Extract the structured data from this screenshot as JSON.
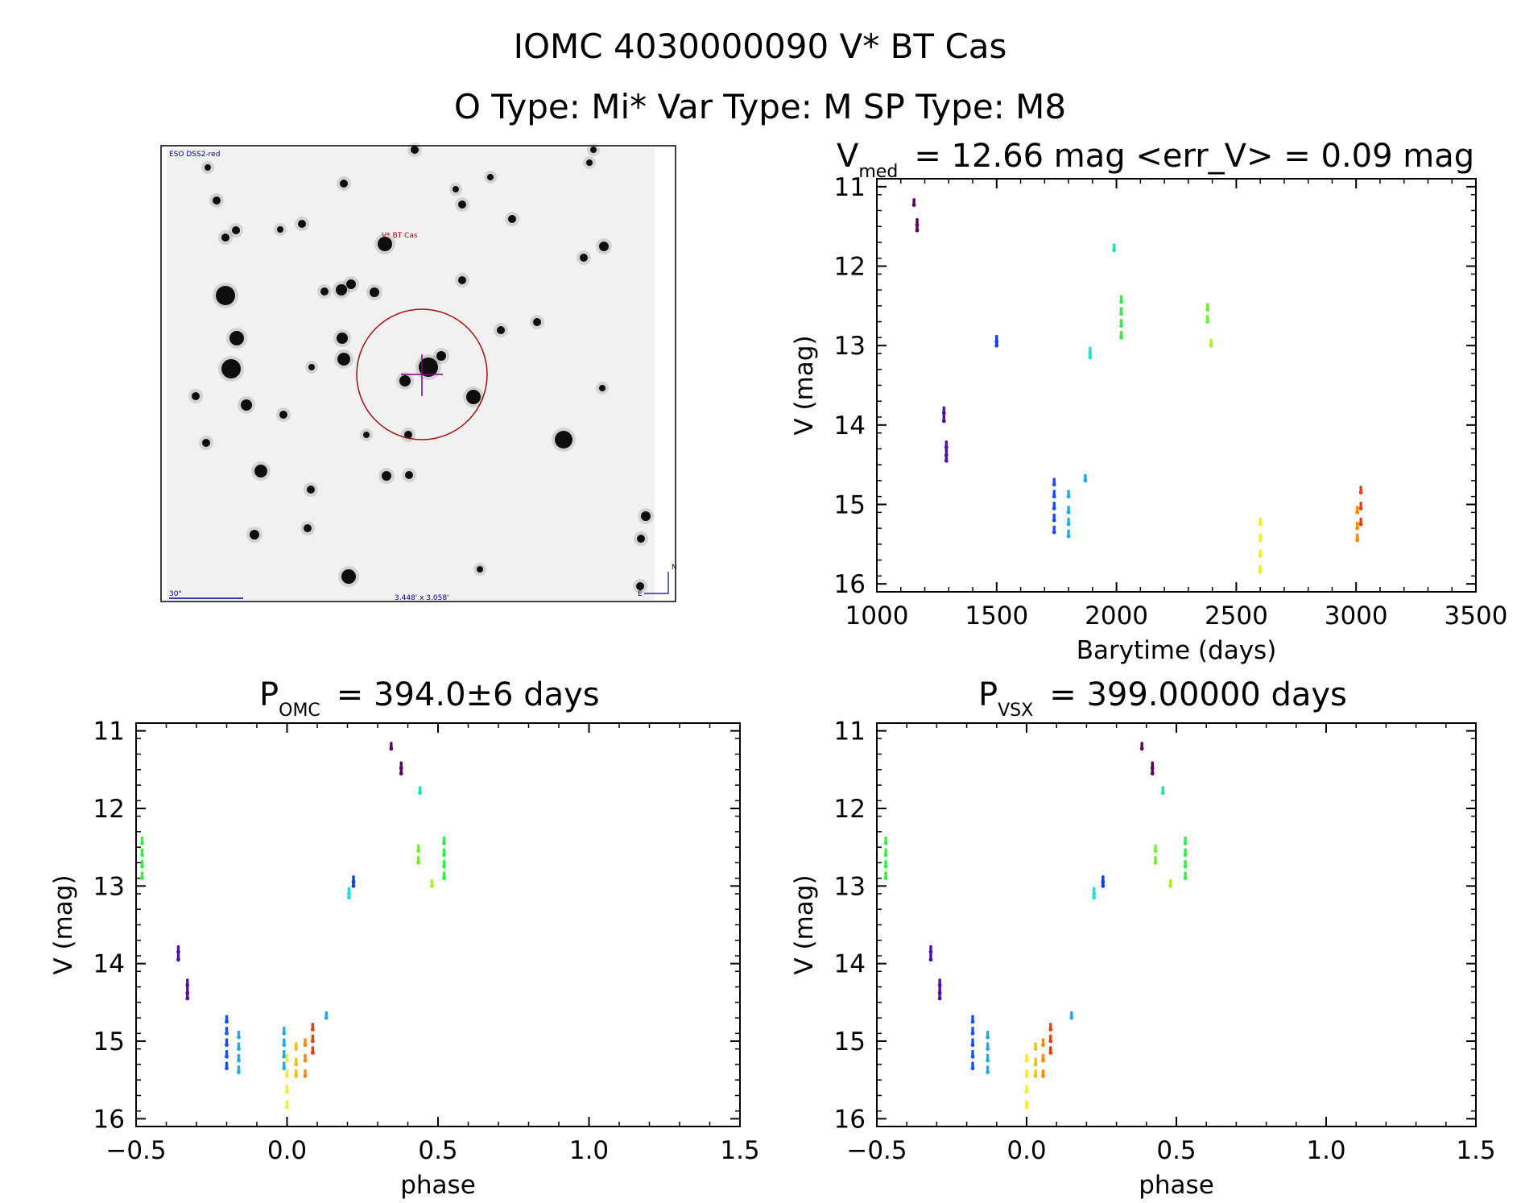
{
  "header": {
    "title": "IOMC 4030000090   V* BT Cas",
    "subtitle": "O Type: Mi*  Var Type: M  SP Type: M8"
  },
  "finder_chart": {
    "survey_label": "ESO DSS2-red",
    "target_label": "V* BT Cas",
    "scale_label": "30\"",
    "fov_label": "3.448' x 3.058'",
    "north_label": "N",
    "east_label": "E"
  },
  "chart_data": [
    {
      "type": "scatter",
      "id": "lightcurve",
      "title_main": "V",
      "title_sub": "med",
      "title_rest": "= 12.66 mag <err_V> = 0.09 mag",
      "xlabel": "Barytime (days)",
      "ylabel": "V (mag)",
      "xlim": [
        1000,
        3500
      ],
      "ylim": [
        16.1,
        10.9
      ],
      "xticks": [
        1000,
        1500,
        2000,
        2500,
        3000,
        3500
      ],
      "xtick_labels": [
        "1000",
        "1500",
        "2000",
        "2500",
        "3000",
        "3500"
      ],
      "yticks": [
        11,
        12,
        13,
        14,
        15,
        16
      ],
      "ytick_labels": [
        "11",
        "12",
        "13",
        "14",
        "15",
        "16"
      ],
      "groups": [
        {
          "t": 1155,
          "v": [
            11.23
          ],
          "color": "#5a005a"
        },
        {
          "t": 1168,
          "v": [
            11.48,
            11.55
          ],
          "color": "#5a005a"
        },
        {
          "t": 1280,
          "v": [
            13.85,
            13.95
          ],
          "color": "#5010a0"
        },
        {
          "t": 1290,
          "v": [
            14.28,
            14.38,
            14.45
          ],
          "color": "#5010a0"
        },
        {
          "t": 1500,
          "v": [
            12.95,
            13.0
          ],
          "color": "#1040e0"
        },
        {
          "t": 1740,
          "v": [
            14.75,
            14.9,
            15.05,
            15.2,
            15.35
          ],
          "color": "#1850f0"
        },
        {
          "t": 1800,
          "v": [
            14.9,
            15.1,
            15.25,
            15.4
          ],
          "color": "#20a8f0"
        },
        {
          "t": 1870,
          "v": [
            14.7
          ],
          "color": "#20a8f0"
        },
        {
          "t": 1890,
          "v": [
            13.1,
            13.15
          ],
          "color": "#20e0d0"
        },
        {
          "t": 1990,
          "v": [
            11.8
          ],
          "color": "#20e0a0"
        },
        {
          "t": 2020,
          "v": [
            12.45,
            12.6,
            12.75,
            12.9
          ],
          "color": "#30f040"
        },
        {
          "t": 2380,
          "v": [
            12.55,
            12.7
          ],
          "color": "#70f030"
        },
        {
          "t": 2395,
          "v": [
            13.0
          ],
          "color": "#a8f020"
        },
        {
          "t": 2600,
          "v": [
            15.25,
            15.45,
            15.65,
            15.85
          ],
          "color": "#f0f020"
        },
        {
          "t": 3005,
          "v": [
            15.1,
            15.3,
            15.45
          ],
          "color": "#f08a10"
        },
        {
          "t": 3020,
          "v": [
            14.85,
            15.05,
            15.25
          ],
          "color": "#f03a10"
        }
      ]
    },
    {
      "type": "scatter",
      "id": "phase-omc",
      "title_main": "P",
      "title_sub": "OMC",
      "title_rest": "= 394.0±6 days",
      "xlabel": "phase",
      "ylabel": "V (mag)",
      "xlim": [
        -0.5,
        1.5
      ],
      "ylim": [
        16.1,
        10.9
      ],
      "xticks": [
        -0.5,
        0.0,
        0.5,
        1.0,
        1.5
      ],
      "xtick_labels": [
        "−0.5",
        "0.0",
        "0.5",
        "1.0",
        "1.5"
      ],
      "yticks": [
        11,
        12,
        13,
        14,
        15,
        16
      ],
      "ytick_labels": [
        "11",
        "12",
        "13",
        "14",
        "15",
        "16"
      ],
      "groups": [
        {
          "p": 0.345,
          "v": [
            11.23
          ],
          "color": "#5a005a"
        },
        {
          "p": 0.378,
          "v": [
            11.48,
            11.55
          ],
          "color": "#5a005a"
        },
        {
          "p": -0.36,
          "v": [
            13.85,
            13.95
          ],
          "color": "#5010a0"
        },
        {
          "p": -0.33,
          "v": [
            14.28,
            14.38,
            14.45
          ],
          "color": "#5010a0"
        },
        {
          "p": 0.22,
          "v": [
            12.95,
            13.0
          ],
          "color": "#1040e0"
        },
        {
          "p": -0.2,
          "v": [
            14.75,
            14.9,
            15.05,
            15.2,
            15.35
          ],
          "color": "#1850f0"
        },
        {
          "p": -0.16,
          "v": [
            14.95,
            15.1,
            15.25,
            15.4
          ],
          "color": "#20a8f0"
        },
        {
          "p": -0.01,
          "v": [
            14.9,
            15.05,
            15.2,
            15.35
          ],
          "color": "#20a8f0"
        },
        {
          "p": 0.13,
          "v": [
            14.7
          ],
          "color": "#20a8f0"
        },
        {
          "p": 0.205,
          "v": [
            13.1,
            13.15
          ],
          "color": "#20e0d0"
        },
        {
          "p": 0.44,
          "v": [
            11.8
          ],
          "color": "#20e0a0"
        },
        {
          "p": -0.48,
          "v": [
            12.45,
            12.6,
            12.75,
            12.9
          ],
          "color": "#30f040"
        },
        {
          "p": 0.52,
          "v": [
            12.45,
            12.6,
            12.75,
            12.9
          ],
          "color": "#30f040"
        },
        {
          "p": 0.435,
          "v": [
            12.55,
            12.7
          ],
          "color": "#70f030"
        },
        {
          "p": 0.48,
          "v": [
            13.0
          ],
          "color": "#a8f020"
        },
        {
          "p": 0.0,
          "v": [
            15.25,
            15.45,
            15.65,
            15.85
          ],
          "color": "#f0f020"
        },
        {
          "p": 0.03,
          "v": [
            15.1,
            15.3,
            15.45
          ],
          "color": "#f0c010"
        },
        {
          "p": 0.06,
          "v": [
            15.05,
            15.25,
            15.45
          ],
          "color": "#f08a10"
        },
        {
          "p": 0.085,
          "v": [
            14.85,
            15.0,
            15.15
          ],
          "color": "#f03a10"
        }
      ]
    },
    {
      "type": "scatter",
      "id": "phase-vsx",
      "title_main": "P",
      "title_sub": "VSX",
      "title_rest": "= 399.00000 days",
      "xlabel": "phase",
      "ylabel": "V (mag)",
      "xlim": [
        -0.5,
        1.5
      ],
      "ylim": [
        16.1,
        10.9
      ],
      "xticks": [
        -0.5,
        0.0,
        0.5,
        1.0,
        1.5
      ],
      "xtick_labels": [
        "−0.5",
        "0.0",
        "0.5",
        "1.0",
        "1.5"
      ],
      "yticks": [
        11,
        12,
        13,
        14,
        15,
        16
      ],
      "ytick_labels": [
        "11",
        "12",
        "13",
        "14",
        "15",
        "16"
      ],
      "groups": [
        {
          "p": 0.385,
          "v": [
            11.23
          ],
          "color": "#5a005a"
        },
        {
          "p": 0.42,
          "v": [
            11.48,
            11.55
          ],
          "color": "#5a005a"
        },
        {
          "p": -0.32,
          "v": [
            13.85,
            13.95
          ],
          "color": "#5010a0"
        },
        {
          "p": -0.29,
          "v": [
            14.28,
            14.38,
            14.45
          ],
          "color": "#5010a0"
        },
        {
          "p": 0.255,
          "v": [
            12.95,
            13.0
          ],
          "color": "#1040e0"
        },
        {
          "p": -0.18,
          "v": [
            14.75,
            14.9,
            15.05,
            15.2,
            15.35
          ],
          "color": "#1850f0"
        },
        {
          "p": -0.13,
          "v": [
            14.95,
            15.1,
            15.25,
            15.4
          ],
          "color": "#20a8f0"
        },
        {
          "p": 0.15,
          "v": [
            14.7
          ],
          "color": "#20a8f0"
        },
        {
          "p": 0.225,
          "v": [
            13.1,
            13.15
          ],
          "color": "#20e0d0"
        },
        {
          "p": 0.455,
          "v": [
            11.8
          ],
          "color": "#20e0a0"
        },
        {
          "p": -0.47,
          "v": [
            12.45,
            12.6,
            12.75,
            12.9
          ],
          "color": "#30f040"
        },
        {
          "p": 0.53,
          "v": [
            12.45,
            12.6,
            12.75,
            12.9
          ],
          "color": "#30f040"
        },
        {
          "p": 0.43,
          "v": [
            12.55,
            12.7
          ],
          "color": "#70f030"
        },
        {
          "p": 0.48,
          "v": [
            13.0
          ],
          "color": "#a8f020"
        },
        {
          "p": 0.0,
          "v": [
            15.25,
            15.45,
            15.65,
            15.85
          ],
          "color": "#f0f020"
        },
        {
          "p": 0.03,
          "v": [
            15.1,
            15.3,
            15.45
          ],
          "color": "#f0c010"
        },
        {
          "p": 0.055,
          "v": [
            15.05,
            15.25,
            15.45
          ],
          "color": "#f08a10"
        },
        {
          "p": 0.08,
          "v": [
            14.85,
            15.0,
            15.15
          ],
          "color": "#f03a10"
        }
      ]
    }
  ]
}
